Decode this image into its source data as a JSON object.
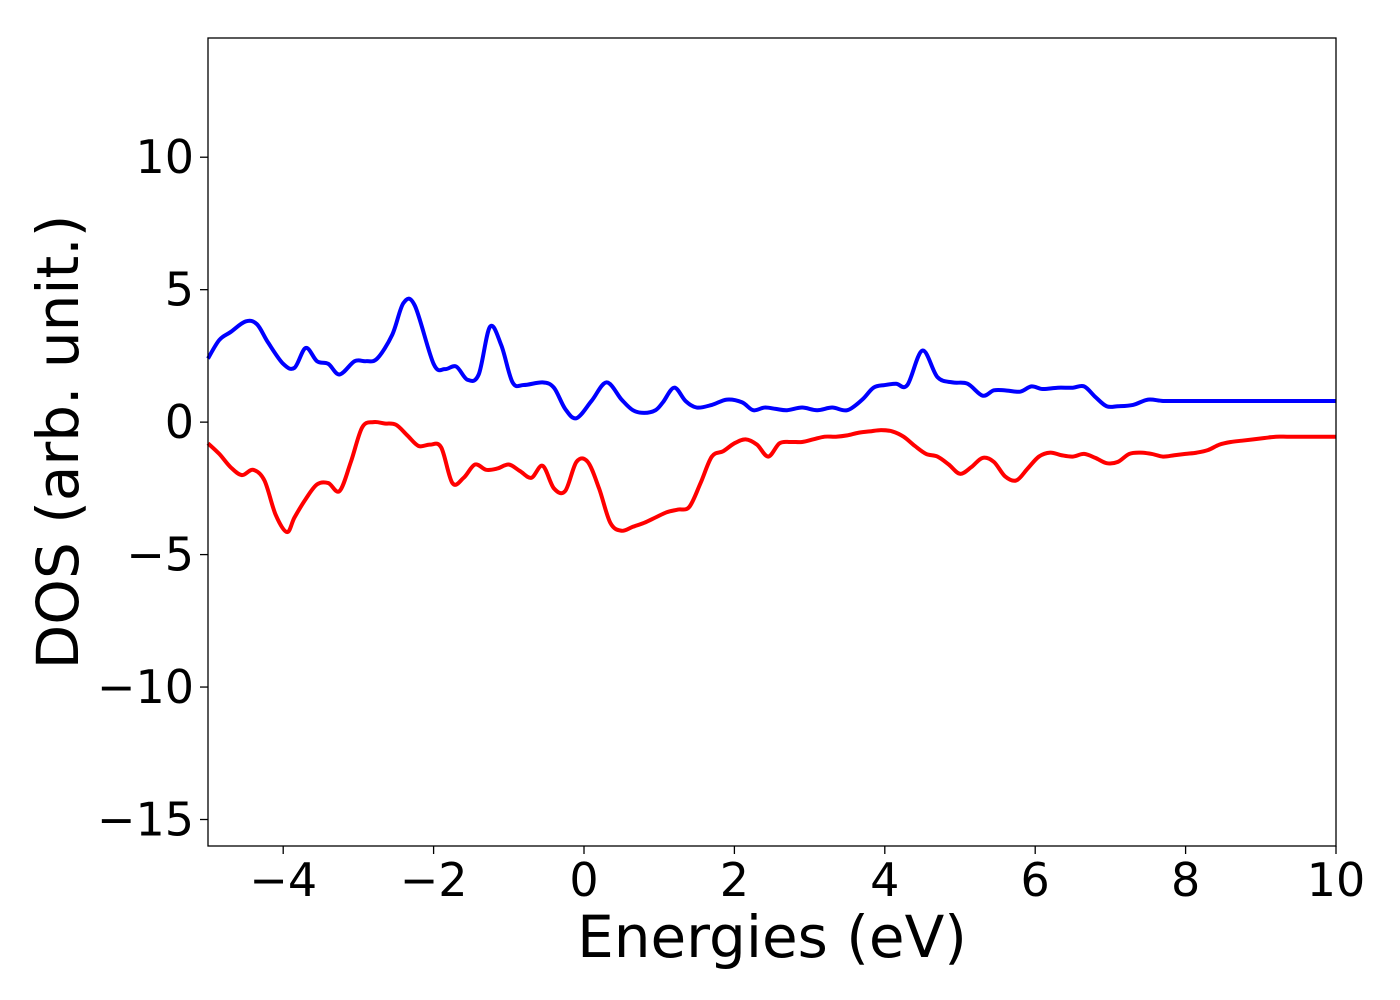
{
  "chart_data": {
    "type": "line",
    "title": "",
    "xlabel": "Energies (eV)",
    "ylabel": "DOS (arb. unit.)",
    "xlim": [
      -5,
      10
    ],
    "ylim": [
      -16,
      14.5
    ],
    "xticks": [
      -4,
      -2,
      0,
      2,
      4,
      6,
      8,
      10
    ],
    "yticks": [
      -15,
      -10,
      -5,
      0,
      5,
      10
    ],
    "xtick_labels": [
      "−4",
      "−2",
      "0",
      "2",
      "4",
      "6",
      "8",
      "10"
    ],
    "ytick_labels": [
      "−15",
      "−10",
      "−5",
      "0",
      "5",
      "10"
    ],
    "grid": false,
    "legend": "none",
    "series": [
      {
        "color": "#0000ff",
        "x": [
          -5.0,
          -4.85,
          -4.7,
          -4.5,
          -4.35,
          -4.2,
          -4.0,
          -3.85,
          -3.7,
          -3.55,
          -3.4,
          -3.25,
          -3.05,
          -2.9,
          -2.75,
          -2.55,
          -2.4,
          -2.25,
          -2.0,
          -1.85,
          -1.7,
          -1.55,
          -1.4,
          -1.25,
          -1.1,
          -0.95,
          -0.8,
          -0.55,
          -0.4,
          -0.25,
          -0.1,
          0.1,
          0.3,
          0.5,
          0.65,
          0.8,
          0.95,
          1.05,
          1.2,
          1.35,
          1.5,
          1.7,
          1.9,
          2.1,
          2.25,
          2.4,
          2.55,
          2.7,
          2.9,
          3.1,
          3.3,
          3.5,
          3.7,
          3.85,
          4.0,
          4.15,
          4.3,
          4.5,
          4.7,
          4.9,
          5.1,
          5.3,
          5.45,
          5.6,
          5.8,
          5.95,
          6.1,
          6.3,
          6.5,
          6.65,
          6.8,
          6.95,
          7.1,
          7.3,
          7.5,
          7.7,
          7.95,
          8.2,
          8.45,
          8.7,
          8.95,
          9.1,
          9.3,
          9.5,
          9.7,
          9.85,
          10.0
        ],
        "y": [
          2.4,
          3.1,
          3.4,
          3.8,
          3.7,
          3.0,
          2.2,
          2.05,
          2.8,
          2.3,
          2.2,
          1.8,
          2.3,
          2.3,
          2.4,
          3.3,
          4.5,
          4.4,
          2.2,
          2.0,
          2.1,
          1.6,
          1.8,
          3.6,
          2.9,
          1.5,
          1.4,
          1.5,
          1.3,
          0.5,
          0.15,
          0.8,
          1.5,
          0.85,
          0.45,
          0.35,
          0.45,
          0.75,
          1.3,
          0.8,
          0.55,
          0.65,
          0.85,
          0.75,
          0.45,
          0.55,
          0.5,
          0.45,
          0.55,
          0.45,
          0.55,
          0.45,
          0.85,
          1.3,
          1.4,
          1.45,
          1.4,
          2.7,
          1.7,
          1.5,
          1.45,
          1.0,
          1.2,
          1.2,
          1.15,
          1.35,
          1.25,
          1.3,
          1.3,
          1.35,
          0.95,
          0.6,
          0.6,
          0.65,
          0.85,
          0.8,
          0.8,
          0.8,
          0.8,
          0.8,
          0.8,
          0.8,
          0.8,
          0.8,
          0.8,
          0.8,
          0.8
        ]
      },
      {
        "color": "#ff0000",
        "x": [
          -5.0,
          -4.85,
          -4.7,
          -4.55,
          -4.4,
          -4.25,
          -4.1,
          -3.95,
          -3.85,
          -3.7,
          -3.55,
          -3.4,
          -3.25,
          -3.1,
          -2.95,
          -2.8,
          -2.65,
          -2.5,
          -2.35,
          -2.2,
          -2.05,
          -1.9,
          -1.75,
          -1.6,
          -1.45,
          -1.3,
          -1.15,
          -1.0,
          -0.85,
          -0.7,
          -0.55,
          -0.4,
          -0.25,
          -0.1,
          0.05,
          0.2,
          0.35,
          0.5,
          0.65,
          0.8,
          0.95,
          1.1,
          1.25,
          1.4,
          1.55,
          1.7,
          1.85,
          2.0,
          2.15,
          2.3,
          2.45,
          2.6,
          2.75,
          2.9,
          3.05,
          3.2,
          3.35,
          3.5,
          3.65,
          3.8,
          3.95,
          4.1,
          4.25,
          4.4,
          4.55,
          4.7,
          4.85,
          5.0,
          5.15,
          5.3,
          5.45,
          5.6,
          5.75,
          5.9,
          6.05,
          6.2,
          6.35,
          6.5,
          6.65,
          6.8,
          6.95,
          7.1,
          7.25,
          7.4,
          7.55,
          7.7,
          7.85,
          8.0,
          8.15,
          8.3,
          8.45,
          8.6,
          8.75,
          8.9,
          9.05,
          9.2,
          9.35,
          9.5,
          9.65,
          9.8,
          10.0
        ],
        "y": [
          -0.8,
          -1.2,
          -1.7,
          -2.0,
          -1.8,
          -2.2,
          -3.5,
          -4.15,
          -3.6,
          -2.9,
          -2.35,
          -2.3,
          -2.6,
          -1.5,
          -0.2,
          -0.0,
          -0.05,
          -0.1,
          -0.5,
          -0.9,
          -0.85,
          -0.95,
          -2.3,
          -2.1,
          -1.6,
          -1.8,
          -1.75,
          -1.6,
          -1.85,
          -2.1,
          -1.65,
          -2.5,
          -2.6,
          -1.5,
          -1.5,
          -2.5,
          -3.8,
          -4.1,
          -3.95,
          -3.8,
          -3.6,
          -3.4,
          -3.3,
          -3.2,
          -2.3,
          -1.3,
          -1.1,
          -0.8,
          -0.65,
          -0.85,
          -1.3,
          -0.8,
          -0.75,
          -0.75,
          -0.65,
          -0.55,
          -0.55,
          -0.5,
          -0.4,
          -0.35,
          -0.3,
          -0.35,
          -0.55,
          -0.9,
          -1.2,
          -1.3,
          -1.6,
          -1.95,
          -1.7,
          -1.35,
          -1.5,
          -2.05,
          -2.2,
          -1.75,
          -1.3,
          -1.15,
          -1.25,
          -1.3,
          -1.2,
          -1.35,
          -1.55,
          -1.5,
          -1.2,
          -1.15,
          -1.2,
          -1.3,
          -1.25,
          -1.2,
          -1.15,
          -1.05,
          -0.85,
          -0.75,
          -0.7,
          -0.65,
          -0.6,
          -0.55,
          -0.55,
          -0.55,
          -0.55,
          -0.55,
          -0.55
        ]
      }
    ]
  }
}
